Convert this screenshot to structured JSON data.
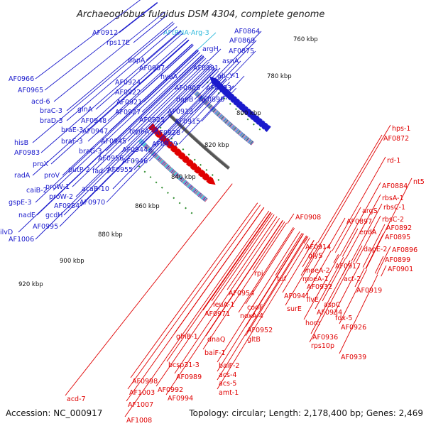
{
  "title": "Archaeoglobus fulgidus DSM 4304, complete genome",
  "footer": {
    "accession": "Accession: NC_000917",
    "summary": "Topology: circular; Length: 2,178,400 bp; Genes: 2,469"
  },
  "colors": {
    "forward": "#1a1acc",
    "reverse": "#e00000",
    "rna": "#33bbdd",
    "backbone": "#555555",
    "ticks": "#2a8a2a"
  },
  "scale": {
    "labels": [
      "760 kbp",
      "780 kbp",
      "800 kbp",
      "820 kbp",
      "840 kbp",
      "860 kbp",
      "880 kbp",
      "900 kbp",
      "920 kbp"
    ]
  },
  "forward_labels": [
    {
      "text": "AF0912",
      "kind": "forward"
    },
    {
      "text": "rps17E",
      "kind": "forward"
    },
    {
      "text": "AFtRNA-Arg-3",
      "kind": "rna"
    },
    {
      "text": "AF0864",
      "kind": "forward"
    },
    {
      "text": "AF0869",
      "kind": "forward"
    },
    {
      "text": "AF0875",
      "kind": "forward"
    },
    {
      "text": "argH",
      "kind": "forward"
    },
    {
      "text": "asnA",
      "kind": "forward"
    },
    {
      "text": "dapA",
      "kind": "forward"
    },
    {
      "text": "AF0907",
      "kind": "forward"
    },
    {
      "text": "AF0891",
      "kind": "forward"
    },
    {
      "text": "ahcY-1",
      "kind": "forward"
    },
    {
      "text": "AF0966",
      "kind": "forward"
    },
    {
      "text": "hyuA",
      "kind": "forward"
    },
    {
      "text": "AF0924",
      "kind": "forward"
    },
    {
      "text": "AF0905",
      "kind": "forward"
    },
    {
      "text": "AF0893",
      "kind": "forward"
    },
    {
      "text": "AF0965",
      "kind": "forward"
    },
    {
      "text": "AF0922",
      "kind": "forward"
    },
    {
      "text": "dapB",
      "kind": "forward"
    },
    {
      "text": "AF0898",
      "kind": "forward"
    },
    {
      "text": "acd-6",
      "kind": "forward"
    },
    {
      "text": "AF0921",
      "kind": "forward"
    },
    {
      "text": "braC-3",
      "kind": "forward"
    },
    {
      "text": "glnA",
      "kind": "forward"
    },
    {
      "text": "AF0927",
      "kind": "forward"
    },
    {
      "text": "AF0913",
      "kind": "forward"
    },
    {
      "text": "braD-3",
      "kind": "forward"
    },
    {
      "text": "AF0948",
      "kind": "forward"
    },
    {
      "text": "AF0925",
      "kind": "forward"
    },
    {
      "text": "AF0915",
      "kind": "forward"
    },
    {
      "text": "braE-3",
      "kind": "forward"
    },
    {
      "text": "AF0947",
      "kind": "forward"
    },
    {
      "text": "top6A",
      "kind": "forward"
    },
    {
      "text": "AF0928",
      "kind": "forward"
    },
    {
      "text": "braF-3",
      "kind": "forward"
    },
    {
      "text": "AF0945",
      "kind": "forward"
    },
    {
      "text": "hisB",
      "kind": "forward"
    },
    {
      "text": "AF0929",
      "kind": "forward"
    },
    {
      "text": "AF0983",
      "kind": "forward"
    },
    {
      "text": "braG-3",
      "kind": "forward"
    },
    {
      "text": "AF0944",
      "kind": "forward"
    },
    {
      "text": "AF0956",
      "kind": "forward"
    },
    {
      "text": "proX",
      "kind": "forward"
    },
    {
      "text": "AF0946",
      "kind": "forward"
    },
    {
      "text": "fad-3",
      "kind": "forward"
    },
    {
      "text": "putP-2",
      "kind": "forward"
    },
    {
      "text": "AF0955",
      "kind": "forward"
    },
    {
      "text": "radA",
      "kind": "forward"
    },
    {
      "text": "proV",
      "kind": "forward"
    },
    {
      "text": "proW-1",
      "kind": "forward"
    },
    {
      "text": "caiB-2",
      "kind": "forward"
    },
    {
      "text": "acaB-10",
      "kind": "forward"
    },
    {
      "text": "proW-2",
      "kind": "forward"
    },
    {
      "text": "gspE-3",
      "kind": "forward"
    },
    {
      "text": "AF0984",
      "kind": "forward"
    },
    {
      "text": "AF0970",
      "kind": "forward"
    },
    {
      "text": "nadE",
      "kind": "forward"
    },
    {
      "text": "gcdH",
      "kind": "forward"
    },
    {
      "text": "AF0995",
      "kind": "forward"
    },
    {
      "text": "ilvD",
      "kind": "forward"
    },
    {
      "text": "AF1006",
      "kind": "forward"
    }
  ],
  "reverse_labels": [
    {
      "text": "hps-1"
    },
    {
      "text": "AF0872"
    },
    {
      "text": "rd-1"
    },
    {
      "text": "nt5"
    },
    {
      "text": "AF0884"
    },
    {
      "text": "rbsA-1"
    },
    {
      "text": "argS"
    },
    {
      "text": "rbsC-1"
    },
    {
      "text": "AF0908"
    },
    {
      "text": "AF0897"
    },
    {
      "text": "rbsC-2"
    },
    {
      "text": "AF0892"
    },
    {
      "text": "endA"
    },
    {
      "text": "AF0895"
    },
    {
      "text": "dapE-2"
    },
    {
      "text": "AF0896"
    },
    {
      "text": "AF0899"
    },
    {
      "text": "AF0901"
    },
    {
      "text": "AF0914"
    },
    {
      "text": "glyS"
    },
    {
      "text": "AF0917"
    },
    {
      "text": "moeA-2"
    },
    {
      "text": "act-2"
    },
    {
      "text": "rpi"
    },
    {
      "text": "tuf"
    },
    {
      "text": "moeA-1"
    },
    {
      "text": "AF0932"
    },
    {
      "text": "AF0919"
    },
    {
      "text": "AF0954"
    },
    {
      "text": "AF0941"
    },
    {
      "text": "ilvE"
    },
    {
      "text": "aspC"
    },
    {
      "text": "leuA-1"
    },
    {
      "text": "cooF"
    },
    {
      "text": "surE"
    },
    {
      "text": "AF0934"
    },
    {
      "text": "fdx-5"
    },
    {
      "text": "AF0971"
    },
    {
      "text": "noxA-4"
    },
    {
      "text": "AF0926"
    },
    {
      "text": "hom"
    },
    {
      "text": "AF0952"
    },
    {
      "text": "AF0936"
    },
    {
      "text": "gltB"
    },
    {
      "text": "rps10p"
    },
    {
      "text": "glnB-1"
    },
    {
      "text": "dnaQ"
    },
    {
      "text": "AF0939"
    },
    {
      "text": "baiF-1"
    },
    {
      "text": "bcsp31-3"
    },
    {
      "text": "baiF-2"
    },
    {
      "text": "AF0989"
    },
    {
      "text": "acs-4"
    },
    {
      "text": "AF0998"
    },
    {
      "text": "acs-5"
    },
    {
      "text": "AF0992"
    },
    {
      "text": "amt-1"
    },
    {
      "text": "AF1003"
    },
    {
      "text": "AF0994"
    },
    {
      "text": "acd-7"
    },
    {
      "text": "AF1007"
    },
    {
      "text": "AF1008"
    }
  ]
}
